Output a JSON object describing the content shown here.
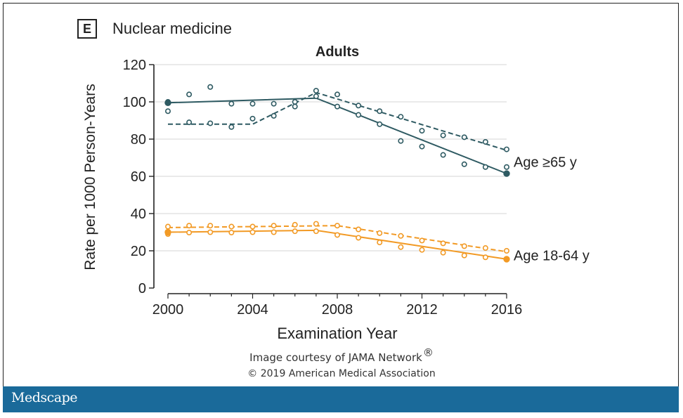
{
  "panel": {
    "label": "E",
    "title": "Nuclear medicine"
  },
  "credit": {
    "line1": "Image courtesy of JAMA Network",
    "registered": "®",
    "line2": "© 2019 American Medical Association"
  },
  "footer": {
    "brand": "Medscape"
  },
  "colors": {
    "older": "#2e5a62",
    "younger": "#f29a25",
    "axis": "#222222",
    "grid": "#d6d6d6"
  },
  "chart_data": {
    "type": "scatter",
    "title": "Adults",
    "xlabel": "Examination Year",
    "ylabel": "Rate per 1000 Person-Years",
    "xlim": [
      2000,
      2016
    ],
    "ylim": [
      0,
      120
    ],
    "xticks": [
      2000,
      2004,
      2008,
      2012,
      2016
    ],
    "yticks": [
      0,
      20,
      40,
      60,
      80,
      100,
      120
    ],
    "grid": "horizontal",
    "series": [
      {
        "name": "Age ≥65 y",
        "group": "older",
        "label": "Age ≥65 y",
        "points_a": {
          "x": [
            2000,
            2001,
            2002,
            2003,
            2004,
            2005,
            2006,
            2007,
            2008,
            2009,
            2010,
            2011,
            2012,
            2013,
            2014,
            2015,
            2016
          ],
          "y": [
            95,
            89,
            88.5,
            86.5,
            91,
            92.5,
            97.5,
            103,
            97.5,
            93,
            88,
            79,
            76,
            71.5,
            66.5,
            65,
            65
          ]
        },
        "points_b": {
          "x": [
            2000,
            2001,
            2002,
            2003,
            2004,
            2005,
            2006,
            2007,
            2008,
            2009,
            2010,
            2011,
            2012,
            2013,
            2014,
            2015,
            2016
          ],
          "y": [
            100,
            104,
            108,
            99,
            99,
            99,
            100,
            106,
            104,
            98,
            95,
            92,
            84.5,
            82,
            81,
            78.5,
            74.5
          ]
        },
        "fit_solid": {
          "x": [
            2000,
            2007,
            2016
          ],
          "y": [
            99.5,
            102,
            61.5
          ]
        },
        "fit_dashed": {
          "x": [
            2000,
            2004,
            2007,
            2016
          ],
          "y": [
            88,
            88,
            105,
            74
          ]
        }
      },
      {
        "name": "Age 18-64 y",
        "group": "younger",
        "label": "Age 18-64 y",
        "points_a": {
          "x": [
            2000,
            2001,
            2002,
            2003,
            2004,
            2005,
            2006,
            2007,
            2008,
            2009,
            2010,
            2011,
            2012,
            2013,
            2014,
            2015,
            2016
          ],
          "y": [
            29,
            29.8,
            30,
            29.8,
            30,
            30,
            30.5,
            30.5,
            28.5,
            27,
            24.5,
            22,
            20.5,
            19,
            17.5,
            16.5,
            15.5
          ]
        },
        "points_b": {
          "x": [
            2000,
            2001,
            2002,
            2003,
            2004,
            2005,
            2006,
            2007,
            2008,
            2009,
            2010,
            2011,
            2012,
            2013,
            2014,
            2015,
            2016
          ],
          "y": [
            33,
            33.5,
            33.5,
            33,
            33,
            33.5,
            34,
            34.5,
            33.5,
            31.5,
            29.5,
            28,
            25.5,
            24,
            22.5,
            21.5,
            20
          ]
        },
        "fit_solid": {
          "x": [
            2000,
            2007,
            2016
          ],
          "y": [
            30,
            31,
            15.5
          ]
        },
        "fit_dashed": {
          "x": [
            2000,
            2008,
            2016
          ],
          "y": [
            32.5,
            33.5,
            19.5
          ]
        }
      }
    ]
  }
}
